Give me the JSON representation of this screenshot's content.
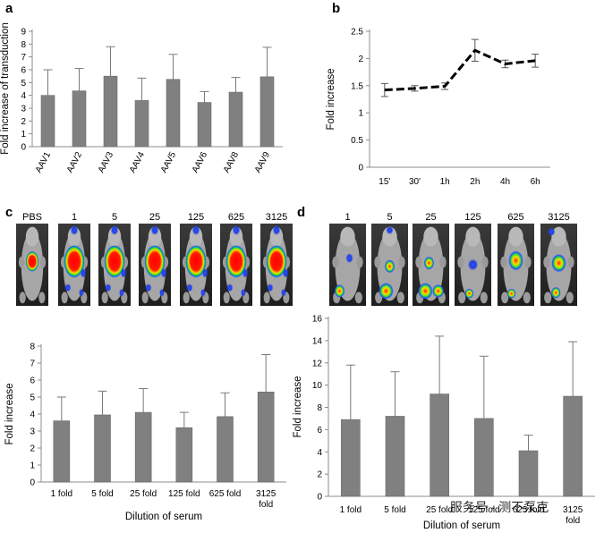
{
  "panel_letters": [
    "a",
    "b",
    "c",
    "d"
  ],
  "watermark": "服务号 · 测不泵克",
  "chart_data": [
    {
      "id": "a",
      "type": "bar",
      "title": "",
      "xlabel": "",
      "ylabel": "Fold increase of transduction",
      "categories": [
        "AAV1",
        "AAV2",
        "AAV3",
        "AAV4",
        "AAV5",
        "AAV6",
        "AAV8",
        "AAV9"
      ],
      "values": [
        4.0,
        4.35,
        5.5,
        3.6,
        5.25,
        3.45,
        4.25,
        5.45
      ],
      "errors": [
        2.0,
        1.75,
        2.3,
        1.75,
        1.95,
        0.85,
        1.15,
        2.3
      ],
      "ylim": [
        0,
        9
      ],
      "yticks": [
        0,
        1,
        2,
        3,
        4,
        5,
        6,
        7,
        8,
        9
      ],
      "bar_color": "#808080",
      "grid": false
    },
    {
      "id": "b",
      "type": "line",
      "title": "",
      "xlabel": "",
      "ylabel": "Fold increase",
      "categories": [
        "15'",
        "30'",
        "1h",
        "2h",
        "4h",
        "6h"
      ],
      "values": [
        1.42,
        1.45,
        1.49,
        2.15,
        1.9,
        1.96
      ],
      "errors": [
        0.12,
        0.05,
        0.06,
        0.2,
        0.07,
        0.12
      ],
      "ylim": [
        0,
        2.5
      ],
      "yticks": [
        0,
        0.5,
        1,
        1.5,
        2,
        2.5
      ],
      "line_style": "dashed",
      "line_color": "#000000",
      "grid": false
    },
    {
      "id": "c",
      "type": "bar",
      "title": "",
      "xlabel": "Dilution of serum",
      "ylabel": "Fold increase",
      "categories": [
        "1 fold",
        "5 fold",
        "25 fold",
        "125 fold",
        "625 fold",
        "3125 fold"
      ],
      "values": [
        3.6,
        3.95,
        4.1,
        3.2,
        3.85,
        5.3
      ],
      "errors": [
        1.4,
        1.4,
        1.4,
        0.9,
        1.4,
        2.2
      ],
      "ylim": [
        0,
        8
      ],
      "yticks": [
        0,
        1,
        2,
        3,
        4,
        5,
        6,
        7,
        8
      ],
      "bar_color": "#808080",
      "grid": false,
      "image_labels": [
        "PBS",
        "1",
        "5",
        "25",
        "125",
        "625",
        "3125"
      ]
    },
    {
      "id": "d",
      "type": "bar",
      "title": "",
      "xlabel": "Dilution of serum",
      "ylabel": "Fold increase",
      "categories": [
        "1 fold",
        "5 fold",
        "25 fold",
        "125 fold",
        "625 fold",
        "3125 fold"
      ],
      "values": [
        6.9,
        7.2,
        9.2,
        7.0,
        4.1,
        9.0
      ],
      "errors": [
        4.9,
        4.0,
        5.2,
        5.6,
        1.4,
        4.9
      ],
      "ylim": [
        0,
        16
      ],
      "yticks": [
        0,
        2,
        4,
        6,
        8,
        10,
        12,
        14,
        16
      ],
      "bar_color": "#808080",
      "grid": false,
      "image_labels": [
        "1",
        "5",
        "25",
        "125",
        "625",
        "3125"
      ]
    }
  ]
}
